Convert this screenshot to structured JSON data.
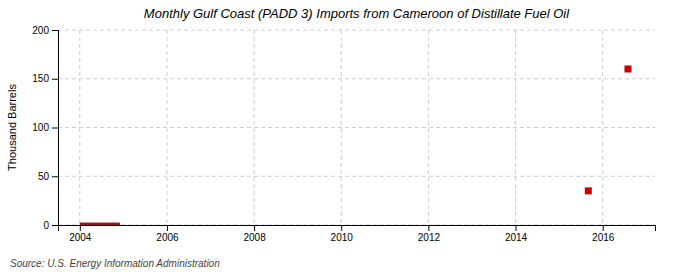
{
  "chart_data": {
    "type": "scatter",
    "title": "Monthly Gulf Coast (PADD 3) Imports from Cameroon of Distillate Fuel Oil",
    "ylabel": "Thousand Barrels",
    "annotations": [
      "Source: U.S. Energy Information Administration"
    ],
    "xlim": [
      2003.5,
      2017.2
    ],
    "ylim": [
      0,
      200
    ],
    "xticks": [
      2004,
      2006,
      2008,
      2010,
      2012,
      2014,
      2016
    ],
    "yticks": [
      0,
      50,
      100,
      150,
      200
    ],
    "grid": true,
    "series": [
      {
        "type": "bar",
        "color": "#8b1a1a",
        "bins": [
          2004.0,
          2004.92
        ],
        "values": [
          2.5
        ]
      },
      {
        "type": "scatter",
        "color": "#cc0000",
        "marker": "square",
        "x": [
          2015.67,
          2016.58
        ],
        "values": [
          35,
          160
        ]
      }
    ]
  }
}
